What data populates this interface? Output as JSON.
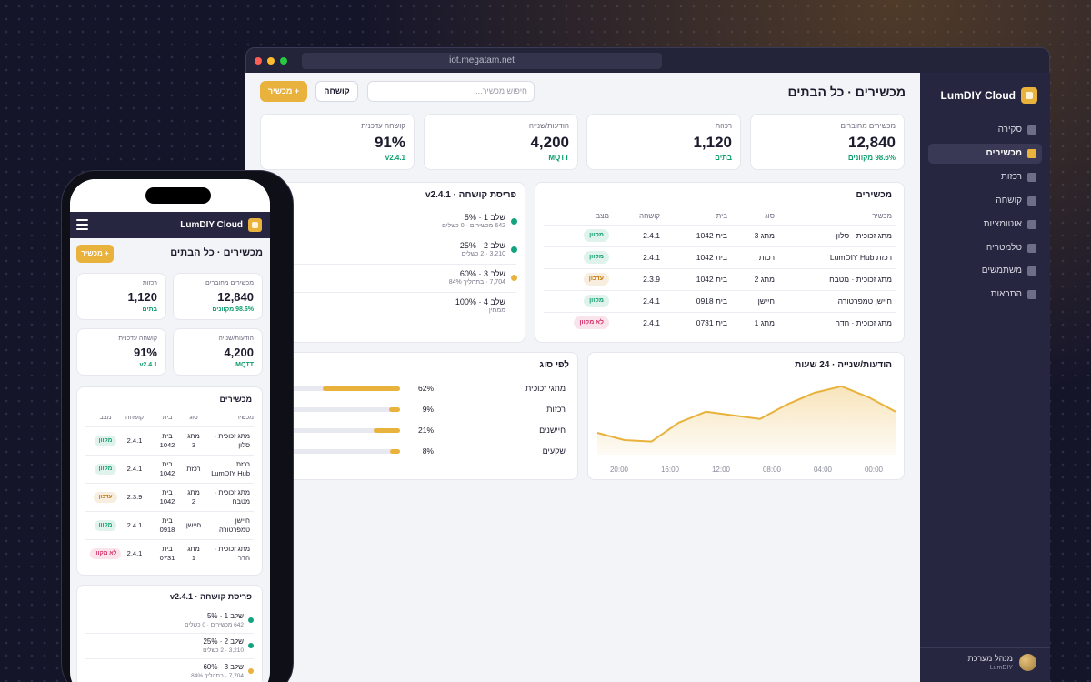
{
  "browser": {
    "url": "iot.megatam.net"
  },
  "sidebar": {
    "brand": "LumDIY Cloud",
    "nav": [
      "סקירה",
      "מכשירים",
      "רכזות",
      "קושחה",
      "אוטומציות",
      "טלמטריה",
      "משתמשים",
      "התראות"
    ],
    "active": 1,
    "user": {
      "name": "מנהל מערכת",
      "org": "LumDIY"
    }
  },
  "header": {
    "title": "מכשירים · כל הבתים",
    "search_placeholder": "חיפוש מכשיר...",
    "buttons": [
      "קושחה",
      "+ מכשיר"
    ]
  },
  "stats": [
    {
      "label": "מכשירים מחוברים",
      "value": "12,840",
      "sub": "98.6% מקוונים"
    },
    {
      "label": "רכזות",
      "value": "1,120",
      "sub": "בתים"
    },
    {
      "label": "הודעות/שנייה",
      "value": "4,200",
      "sub": "MQTT"
    },
    {
      "label": "קושחה עדכנית",
      "value": "91%",
      "sub": "v2.4.1"
    }
  ],
  "devices": {
    "title": "מכשירים",
    "columns": [
      "מכשיר",
      "סוג",
      "בית",
      "קושחה",
      "מצב"
    ],
    "rows": [
      {
        "cells": [
          "מתג זכוכית · סלון",
          "מתג 3",
          "בית 1042",
          "2.4.1",
          "מקוון"
        ],
        "status_color": "#0f9d6e"
      },
      {
        "cells": [
          "רכזת LumDIY Hub",
          "רכזת",
          "בית 1042",
          "2.4.1",
          "מקוון"
        ],
        "status_color": "#0f9d6e"
      },
      {
        "cells": [
          "מתג זכוכית · מטבח",
          "מתג 2",
          "בית 1042",
          "2.3.9",
          "עדכון"
        ],
        "status_color": "#c27c0e"
      },
      {
        "cells": [
          "חיישן טמפרטורה",
          "חיישן",
          "בית 0918",
          "2.4.1",
          "מקוון"
        ],
        "status_color": "#0f9d6e"
      },
      {
        "cells": [
          "מתג זכוכית · חדר",
          "מתג 1",
          "בית 0731",
          "2.4.1",
          "לא מקוון"
        ],
        "status_color": "#d6336c"
      }
    ]
  },
  "rollout": {
    "title": "פריסת קושחה · v2.4.1",
    "stages": [
      {
        "name": "שלב 1 · 5%",
        "detail": "642 מכשירים · 0 כשלים",
        "color": "#14a37f"
      },
      {
        "name": "שלב 2 · 25%",
        "detail": "3,210 · 2 כשלים",
        "color": "#14a37f"
      },
      {
        "name": "שלב 3 · 60%",
        "detail": "7,704 · בתהליך 84%",
        "color": "#e9b23c"
      },
      {
        "name": "שלב 4 · 100%",
        "detail": "ממתין"
      }
    ]
  },
  "throughput": {
    "title": "הודעות/שנייה · 24 שעות",
    "x_labels": [
      "00:00",
      "04:00",
      "08:00",
      "12:00",
      "16:00",
      "20:00"
    ],
    "values": [
      59,
      79,
      94,
      85,
      69,
      49,
      54,
      59,
      44,
      18,
      20,
      30
    ],
    "ylim": [
      0,
      100
    ],
    "color": "#e9b23c"
  },
  "by_type": {
    "title": "לפי סוג",
    "color": "#e9b23c",
    "rows": [
      {
        "name": "מתגי זכוכית",
        "value": 62,
        "label": "62%"
      },
      {
        "name": "רכזות",
        "value": 9,
        "label": "9%"
      },
      {
        "name": "חיישנים",
        "value": 21,
        "label": "21%"
      },
      {
        "name": "שקעים",
        "value": 8,
        "label": "8%"
      }
    ]
  }
}
